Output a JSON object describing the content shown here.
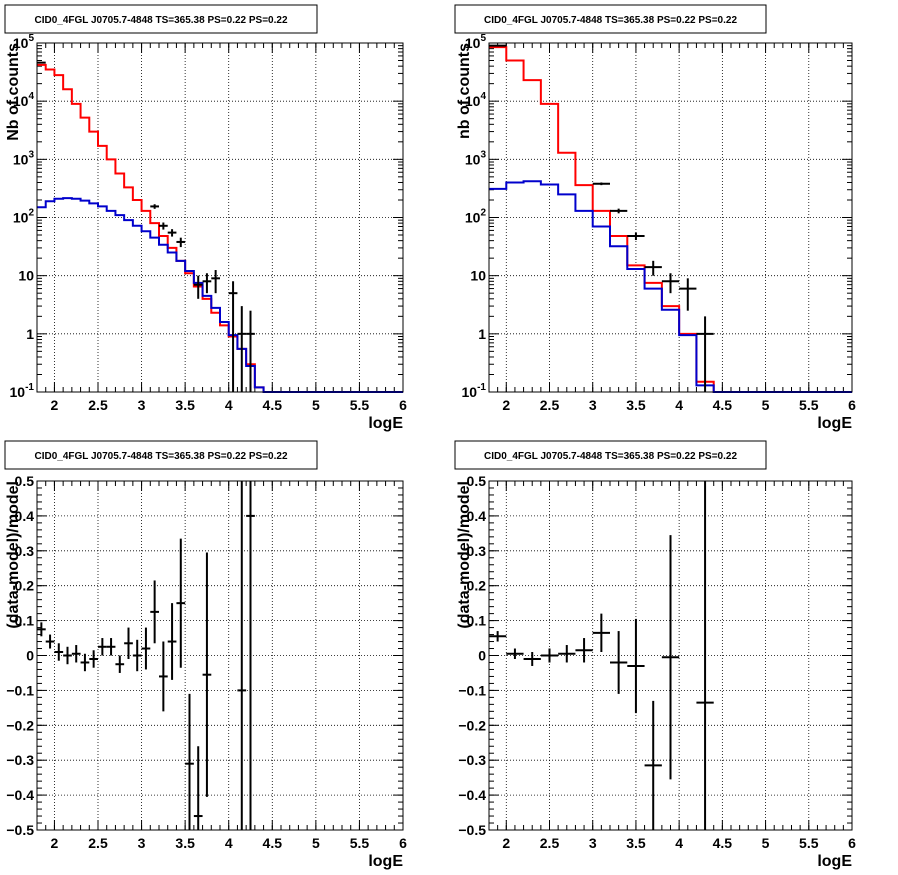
{
  "panel_title": "CID0_4FGL J0705.7-4848 TS=365.38 PS=0.22 PS=0.22",
  "colors": {
    "data": "#000000",
    "total_model": "#ff0000",
    "component_model": "#0000cc",
    "grid": "#000000"
  },
  "chart_data": [
    {
      "type": "step-histogram",
      "name": "top-left",
      "title": "CID0_4FGL J0705.7-4848 TS=365.38 PS=0.22 PS=0.22",
      "xlabel": "logE",
      "ylabel": "Nb of counts",
      "xlim": [
        1.8,
        6.0
      ],
      "ylim": [
        0.1,
        100000
      ],
      "yscale": "log",
      "grid": true,
      "xticks": [
        2,
        2.5,
        3,
        3.5,
        4,
        4.5,
        5,
        5.5,
        6
      ],
      "xtick_labels": [
        "2",
        "2.5",
        "3",
        "3.5",
        "4",
        "4.5",
        "5",
        "5.5",
        "6"
      ],
      "yticks": [
        0.1,
        1,
        10,
        100,
        1000,
        10000,
        100000
      ],
      "ytick_labels": [
        "10^-1",
        "1",
        "10",
        "10^2",
        "10^3",
        "10^4",
        "10^5"
      ],
      "bin_edges": [
        1.8,
        1.9,
        2.0,
        2.1,
        2.2,
        2.3,
        2.4,
        2.5,
        2.6,
        2.7,
        2.8,
        2.9,
        3.0,
        3.1,
        3.2,
        3.3,
        3.4,
        3.5,
        3.6,
        3.7,
        3.8,
        3.9,
        4.0,
        4.1,
        4.2,
        4.3,
        4.4,
        4.5,
        4.6,
        4.7,
        4.8,
        4.9,
        5.0,
        5.1,
        5.2,
        5.3,
        5.4,
        5.5,
        5.6,
        5.7,
        5.8,
        5.9,
        6.0
      ],
      "series": [
        {
          "role": "total_model",
          "values": [
            42000,
            35000,
            28000,
            16000,
            9000,
            5200,
            3000,
            1700,
            1000,
            570,
            330,
            200,
            130,
            80,
            48,
            30,
            18,
            11,
            6.5,
            4,
            2.3,
            1.4,
            0.9,
            0.55,
            0.3,
            0.12,
            0.1,
            0.1,
            0.1,
            0.1,
            0.1,
            0.1,
            0.1,
            0.1,
            0.1,
            0.1,
            0.1,
            0.1,
            0.1,
            0.1,
            0.1,
            0.1
          ]
        },
        {
          "role": "component_model",
          "values": [
            150,
            190,
            210,
            215,
            210,
            195,
            175,
            155,
            130,
            110,
            90,
            72,
            58,
            45,
            34,
            25,
            18,
            12,
            7.5,
            4.5,
            2.8,
            1.6,
            0.95,
            0.55,
            0.28,
            0.12,
            0.1,
            0.1,
            0.1,
            0.1,
            0.1,
            0.1,
            0.1,
            0.1,
            0.1,
            0.1,
            0.1,
            0.1,
            0.1,
            0.1,
            0.1,
            0.1
          ]
        }
      ],
      "data_points": [
        {
          "x": 1.85,
          "y": 46000,
          "xerr": 0.05,
          "yerr": [
            300,
            300
          ]
        },
        {
          "x": 3.15,
          "y": 155,
          "xerr": 0.05,
          "yerr": [
            14,
            14
          ]
        },
        {
          "x": 3.25,
          "y": 72,
          "xerr": 0.05,
          "yerr": [
            10,
            10
          ]
        },
        {
          "x": 3.35,
          "y": 55,
          "xerr": 0.05,
          "yerr": [
            8,
            8
          ]
        },
        {
          "x": 3.45,
          "y": 38,
          "xerr": 0.05,
          "yerr": [
            7,
            7
          ]
        },
        {
          "x": 3.65,
          "y": 7,
          "xerr": 0.05,
          "yerr": [
            3,
            3
          ]
        },
        {
          "x": 3.75,
          "y": 8,
          "xerr": 0.05,
          "yerr": [
            3,
            3
          ]
        },
        {
          "x": 3.85,
          "y": 9,
          "xerr": 0.05,
          "yerr": [
            4,
            3.5
          ]
        },
        {
          "x": 4.05,
          "y": 5,
          "xerr": 0.05,
          "yerr": [
            4.9,
            3
          ]
        },
        {
          "x": 4.15,
          "y": 1,
          "xerr": 0.05,
          "yerr": [
            0.99,
            2
          ]
        },
        {
          "x": 4.25,
          "y": 1,
          "xerr": 0.05,
          "yerr": [
            0.99,
            1.5
          ]
        }
      ]
    },
    {
      "type": "step-histogram",
      "name": "top-right",
      "title": "CID0_4FGL J0705.7-4848 TS=365.38 PS=0.22 PS=0.22",
      "xlabel": "logE",
      "ylabel": "nb of counts",
      "xlim": [
        1.8,
        6.0
      ],
      "ylim": [
        0.1,
        100000
      ],
      "yscale": "log",
      "grid": true,
      "xticks": [
        2,
        2.5,
        3,
        3.5,
        4,
        4.5,
        5,
        5.5,
        6
      ],
      "xtick_labels": [
        "2",
        "2.5",
        "3",
        "3.5",
        "4",
        "4.5",
        "5",
        "5.5",
        "6"
      ],
      "yticks": [
        0.1,
        1,
        10,
        100,
        1000,
        10000,
        100000
      ],
      "ytick_labels": [
        "10^-1",
        "1",
        "10",
        "10^2",
        "10^3",
        "10^4",
        "10^5"
      ],
      "bin_edges": [
        1.8,
        2.0,
        2.2,
        2.4,
        2.6,
        2.8,
        3.0,
        3.2,
        3.4,
        3.6,
        3.8,
        4.0,
        4.2,
        4.4,
        4.6,
        4.8,
        5.0,
        5.2,
        5.4,
        5.6,
        5.8,
        6.0
      ],
      "series": [
        {
          "role": "total_model",
          "values": [
            85000,
            50000,
            23000,
            9000,
            1300,
            360,
            130,
            48,
            15,
            7.5,
            3,
            1,
            0.15,
            0.1,
            0.1,
            0.1,
            0.1,
            0.1,
            0.1,
            0.1,
            0.1
          ]
        },
        {
          "role": "component_model",
          "values": [
            310,
            400,
            420,
            370,
            250,
            130,
            70,
            32,
            13,
            6,
            2.6,
            0.95,
            0.13,
            0.1,
            0.1,
            0.1,
            0.1,
            0.1,
            0.1,
            0.1,
            0.1
          ]
        }
      ],
      "data_points": [
        {
          "x": 1.9,
          "y": 90000,
          "xerr": 0.1,
          "yerr": [
            300,
            300
          ]
        },
        {
          "x": 3.1,
          "y": 380,
          "xerr": 0.1,
          "yerr": [
            20,
            20
          ]
        },
        {
          "x": 3.3,
          "y": 130,
          "xerr": 0.1,
          "yerr": [
            12,
            12
          ]
        },
        {
          "x": 3.5,
          "y": 48,
          "xerr": 0.1,
          "yerr": [
            7,
            7
          ]
        },
        {
          "x": 3.7,
          "y": 14,
          "xerr": 0.1,
          "yerr": [
            4,
            4
          ]
        },
        {
          "x": 3.9,
          "y": 8,
          "xerr": 0.1,
          "yerr": [
            3,
            3
          ]
        },
        {
          "x": 4.1,
          "y": 6,
          "xerr": 0.1,
          "yerr": [
            3.5,
            3
          ]
        },
        {
          "x": 4.3,
          "y": 1,
          "xerr": 0.1,
          "yerr": [
            0.99,
            1
          ]
        }
      ]
    },
    {
      "type": "scatter-errorbars",
      "name": "bottom-left",
      "title": "CID0_4FGL J0705.7-4848 TS=365.38 PS=0.22 PS=0.22",
      "xlabel": "logE",
      "ylabel": "(data-model)/model",
      "xlim": [
        1.8,
        6.0
      ],
      "ylim": [
        -0.5,
        0.5
      ],
      "grid": true,
      "xticks": [
        2,
        2.5,
        3,
        3.5,
        4,
        4.5,
        5,
        5.5,
        6
      ],
      "xtick_labels": [
        "2",
        "2.5",
        "3",
        "3.5",
        "4",
        "4.5",
        "5",
        "5.5",
        "6"
      ],
      "yticks": [
        -0.5,
        -0.4,
        -0.3,
        -0.2,
        -0.1,
        0,
        0.1,
        0.2,
        0.3,
        0.4,
        0.5
      ],
      "ytick_labels": [
        "−0.5",
        "−0.4",
        "−0.3",
        "−0.2",
        "−0.1",
        "0",
        "0.1",
        "0.2",
        "0.3",
        "0.4",
        "0.5"
      ],
      "data_points": [
        {
          "x": 1.85,
          "y": 0.075,
          "xerr": 0.05,
          "yerr": 0.02
        },
        {
          "x": 1.95,
          "y": 0.04,
          "xerr": 0.05,
          "yerr": 0.02
        },
        {
          "x": 2.05,
          "y": 0.01,
          "xerr": 0.05,
          "yerr": 0.025
        },
        {
          "x": 2.15,
          "y": 0.0,
          "xerr": 0.05,
          "yerr": 0.025
        },
        {
          "x": 2.25,
          "y": 0.005,
          "xerr": 0.05,
          "yerr": 0.025
        },
        {
          "x": 2.35,
          "y": -0.02,
          "xerr": 0.05,
          "yerr": 0.025
        },
        {
          "x": 2.45,
          "y": -0.01,
          "xerr": 0.05,
          "yerr": 0.025
        },
        {
          "x": 2.55,
          "y": 0.025,
          "xerr": 0.05,
          "yerr": 0.025
        },
        {
          "x": 2.65,
          "y": 0.025,
          "xerr": 0.05,
          "yerr": 0.025
        },
        {
          "x": 2.75,
          "y": -0.025,
          "xerr": 0.05,
          "yerr": 0.025
        },
        {
          "x": 2.85,
          "y": 0.035,
          "xerr": 0.05,
          "yerr": 0.045
        },
        {
          "x": 2.95,
          "y": 0.0,
          "xerr": 0.05,
          "yerr": 0.045
        },
        {
          "x": 3.05,
          "y": 0.02,
          "xerr": 0.05,
          "yerr": 0.06
        },
        {
          "x": 3.15,
          "y": 0.125,
          "xerr": 0.05,
          "yerr": 0.09
        },
        {
          "x": 3.25,
          "y": -0.06,
          "xerr": 0.05,
          "yerr": 0.1
        },
        {
          "x": 3.35,
          "y": 0.04,
          "xerr": 0.05,
          "yerr": 0.11
        },
        {
          "x": 3.45,
          "y": 0.15,
          "xerr": 0.05,
          "yerr": 0.185
        },
        {
          "x": 3.55,
          "y": -0.31,
          "xerr": 0.05,
          "yerr": 0.2
        },
        {
          "x": 3.65,
          "y": -0.46,
          "xerr": 0.05,
          "yerr": 0.2
        },
        {
          "x": 3.75,
          "y": -0.055,
          "xerr": 0.05,
          "yerr": 0.35
        },
        {
          "x": 4.15,
          "y": -0.1,
          "xerr": 0.05,
          "yerr": 0.9
        },
        {
          "x": 4.25,
          "y": 0.4,
          "xerr": 0.05,
          "yerr": 1.4
        }
      ]
    },
    {
      "type": "scatter-errorbars",
      "name": "bottom-right",
      "title": "CID0_4FGL J0705.7-4848 TS=365.38 PS=0.22 PS=0.22",
      "xlabel": "logE",
      "ylabel": "(data-model)/model",
      "xlim": [
        1.8,
        6.0
      ],
      "ylim": [
        -0.5,
        0.5
      ],
      "grid": true,
      "xticks": [
        2,
        2.5,
        3,
        3.5,
        4,
        4.5,
        5,
        5.5,
        6
      ],
      "xtick_labels": [
        "2",
        "2.5",
        "3",
        "3.5",
        "4",
        "4.5",
        "5",
        "5.5",
        "6"
      ],
      "yticks": [
        -0.5,
        -0.4,
        -0.3,
        -0.2,
        -0.1,
        0,
        0.1,
        0.2,
        0.3,
        0.4,
        0.5
      ],
      "ytick_labels": [
        "−0.5",
        "−0.4",
        "−0.3",
        "−0.2",
        "−0.1",
        "0",
        "0.1",
        "0.2",
        "0.3",
        "0.4",
        "0.5"
      ],
      "data_points": [
        {
          "x": 1.9,
          "y": 0.055,
          "xerr": 0.1,
          "yerr": 0.015
        },
        {
          "x": 2.1,
          "y": 0.005,
          "xerr": 0.1,
          "yerr": 0.015
        },
        {
          "x": 2.3,
          "y": -0.01,
          "xerr": 0.1,
          "yerr": 0.02
        },
        {
          "x": 2.5,
          "y": 0.0,
          "xerr": 0.1,
          "yerr": 0.02
        },
        {
          "x": 2.7,
          "y": 0.005,
          "xerr": 0.1,
          "yerr": 0.025
        },
        {
          "x": 2.9,
          "y": 0.015,
          "xerr": 0.1,
          "yerr": 0.035
        },
        {
          "x": 3.1,
          "y": 0.065,
          "xerr": 0.1,
          "yerr": 0.055
        },
        {
          "x": 3.3,
          "y": -0.02,
          "xerr": 0.1,
          "yerr": 0.09
        },
        {
          "x": 3.5,
          "y": -0.03,
          "xerr": 0.1,
          "yerr": 0.135
        },
        {
          "x": 3.7,
          "y": -0.315,
          "xerr": 0.1,
          "yerr": 0.185
        },
        {
          "x": 3.9,
          "y": -0.005,
          "xerr": 0.1,
          "yerr": 0.35
        },
        {
          "x": 4.3,
          "y": -0.135,
          "xerr": 0.1,
          "yerr": 0.9
        }
      ]
    }
  ]
}
